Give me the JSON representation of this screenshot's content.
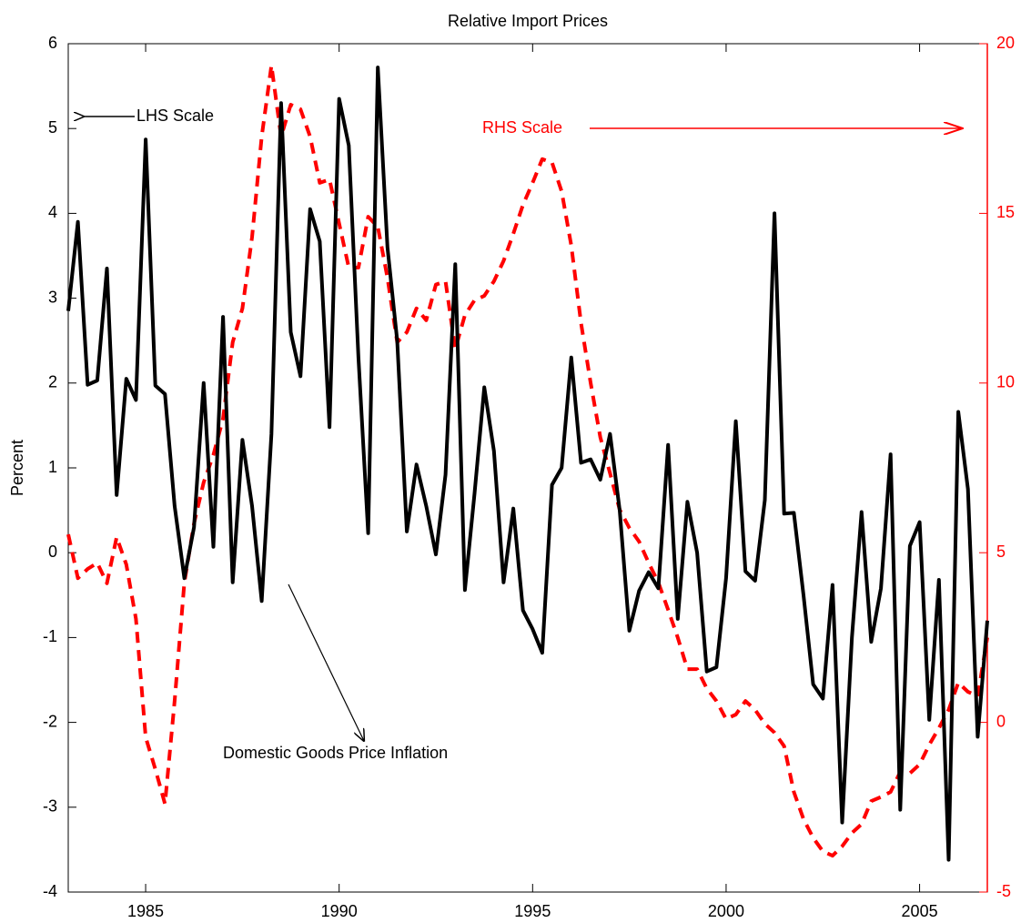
{
  "chart_data": {
    "type": "line",
    "title": "Relative Import Prices",
    "ylabel": "Percent",
    "x": [
      1983,
      1983.25,
      1983.5,
      1983.75,
      1984,
      1984.25,
      1984.5,
      1984.75,
      1985,
      1985.25,
      1985.5,
      1985.75,
      1986,
      1986.25,
      1986.5,
      1986.75,
      1987,
      1987.25,
      1987.5,
      1987.75,
      1988,
      1988.25,
      1988.5,
      1988.75,
      1989,
      1989.25,
      1989.5,
      1989.75,
      1990,
      1990.25,
      1990.5,
      1990.75,
      1991,
      1991.25,
      1991.5,
      1991.75,
      1992,
      1992.25,
      1992.5,
      1992.75,
      1993,
      1993.25,
      1993.5,
      1993.75,
      1994,
      1994.25,
      1994.5,
      1994.75,
      1995,
      1995.25,
      1995.5,
      1995.75,
      1996,
      1996.25,
      1996.5,
      1996.75,
      1997,
      1997.25,
      1997.5,
      1997.75,
      1998,
      1998.25,
      1998.5,
      1998.75,
      1999,
      1999.25,
      1999.5,
      1999.75,
      2000,
      2000.25,
      2000.5,
      2000.75,
      2001,
      2001.25,
      2001.5,
      2001.75,
      2002,
      2002.25,
      2002.5,
      2002.75,
      2003,
      2003.25,
      2003.5,
      2003.75,
      2004,
      2004.25,
      2004.5,
      2004.75,
      2005,
      2005.25,
      2005.5,
      2005.75,
      2006,
      2006.25,
      2006.5,
      2006.75
    ],
    "series": [
      {
        "color": "#000000",
        "style": "solid",
        "axis": "y",
        "values": [
          2.85,
          3.9,
          1.98,
          2.03,
          3.35,
          0.68,
          2.05,
          1.8,
          4.87,
          1.97,
          1.87,
          0.55,
          -0.3,
          0.3,
          2.0,
          0.07,
          2.78,
          -0.35,
          1.33,
          0.55,
          -0.57,
          1.4,
          5.3,
          2.6,
          2.08,
          4.05,
          3.67,
          1.48,
          5.35,
          4.8,
          2.3,
          0.23,
          5.72,
          3.6,
          2.5,
          0.25,
          1.04,
          0.55,
          -0.02,
          0.92,
          3.4,
          -0.44,
          0.7,
          1.95,
          1.2,
          -0.35,
          0.52,
          -0.68,
          -0.9,
          -1.18,
          0.8,
          1.0,
          2.3,
          1.06,
          1.1,
          0.86,
          1.4,
          0.5,
          -0.92,
          -0.45,
          -0.23,
          -0.42,
          1.27,
          -0.78,
          0.6,
          0.0,
          -1.4,
          -1.35,
          -0.3,
          1.55,
          -0.22,
          -0.33,
          0.62,
          4.0,
          0.46,
          0.47,
          -0.5,
          -1.55,
          -1.72,
          -0.38,
          -3.18,
          -1.0,
          0.48,
          -1.05,
          -0.42,
          1.16,
          -3.03,
          0.08,
          0.36,
          -1.97,
          -0.32,
          -3.62,
          1.66,
          0.75,
          -2.17,
          -0.8
        ]
      },
      {
        "color": "#ff0000",
        "style": "dashed",
        "axis": "y2",
        "values": [
          5.54,
          4.25,
          4.52,
          4.7,
          4.1,
          5.46,
          4.65,
          3.05,
          -0.44,
          -1.38,
          -2.4,
          0.63,
          4.12,
          5.86,
          7.07,
          7.88,
          8.95,
          11.2,
          12.2,
          14.3,
          17.26,
          19.36,
          17.26,
          18.2,
          18.07,
          17.26,
          15.9,
          16.0,
          14.7,
          13.4,
          13.4,
          14.9,
          14.6,
          13.1,
          11.2,
          11.5,
          12.2,
          11.85,
          12.9,
          13.0,
          11.0,
          12.0,
          12.44,
          12.57,
          13.0,
          13.6,
          14.4,
          15.25,
          15.9,
          16.6,
          16.5,
          15.65,
          14.05,
          11.77,
          10.0,
          8.4,
          7.34,
          6.27,
          5.73,
          5.33,
          4.7,
          4.12,
          3.32,
          2.5,
          1.57,
          1.57,
          1.0,
          0.63,
          0.1,
          0.23,
          0.63,
          0.37,
          -0.04,
          -0.3,
          -0.7,
          -2.05,
          -2.85,
          -3.4,
          -3.8,
          -3.93,
          -3.65,
          -3.26,
          -3.0,
          -2.32,
          -2.2,
          -2.05,
          -1.46,
          -1.5,
          -1.24,
          -0.66,
          -0.17,
          0.37,
          1.17,
          0.9,
          0.77,
          2.5
        ]
      }
    ],
    "xlim": [
      1983,
      2006.75
    ],
    "xticks": [
      1985,
      1990,
      1995,
      2000,
      2005
    ],
    "ylim": [
      -4,
      6
    ],
    "yticks": [
      -4,
      -3,
      -2,
      -1,
      0,
      1,
      2,
      3,
      4,
      5,
      6
    ],
    "y2lim": [
      -5,
      20
    ],
    "y2ticks": [
      -5,
      0,
      5,
      10,
      15,
      20
    ],
    "y2color": "#ff0000",
    "annotations": [
      {
        "text": "LHS Scale"
      },
      {
        "text": "RHS Scale"
      },
      {
        "text": "Domestic Goods Price Inflation"
      }
    ]
  }
}
